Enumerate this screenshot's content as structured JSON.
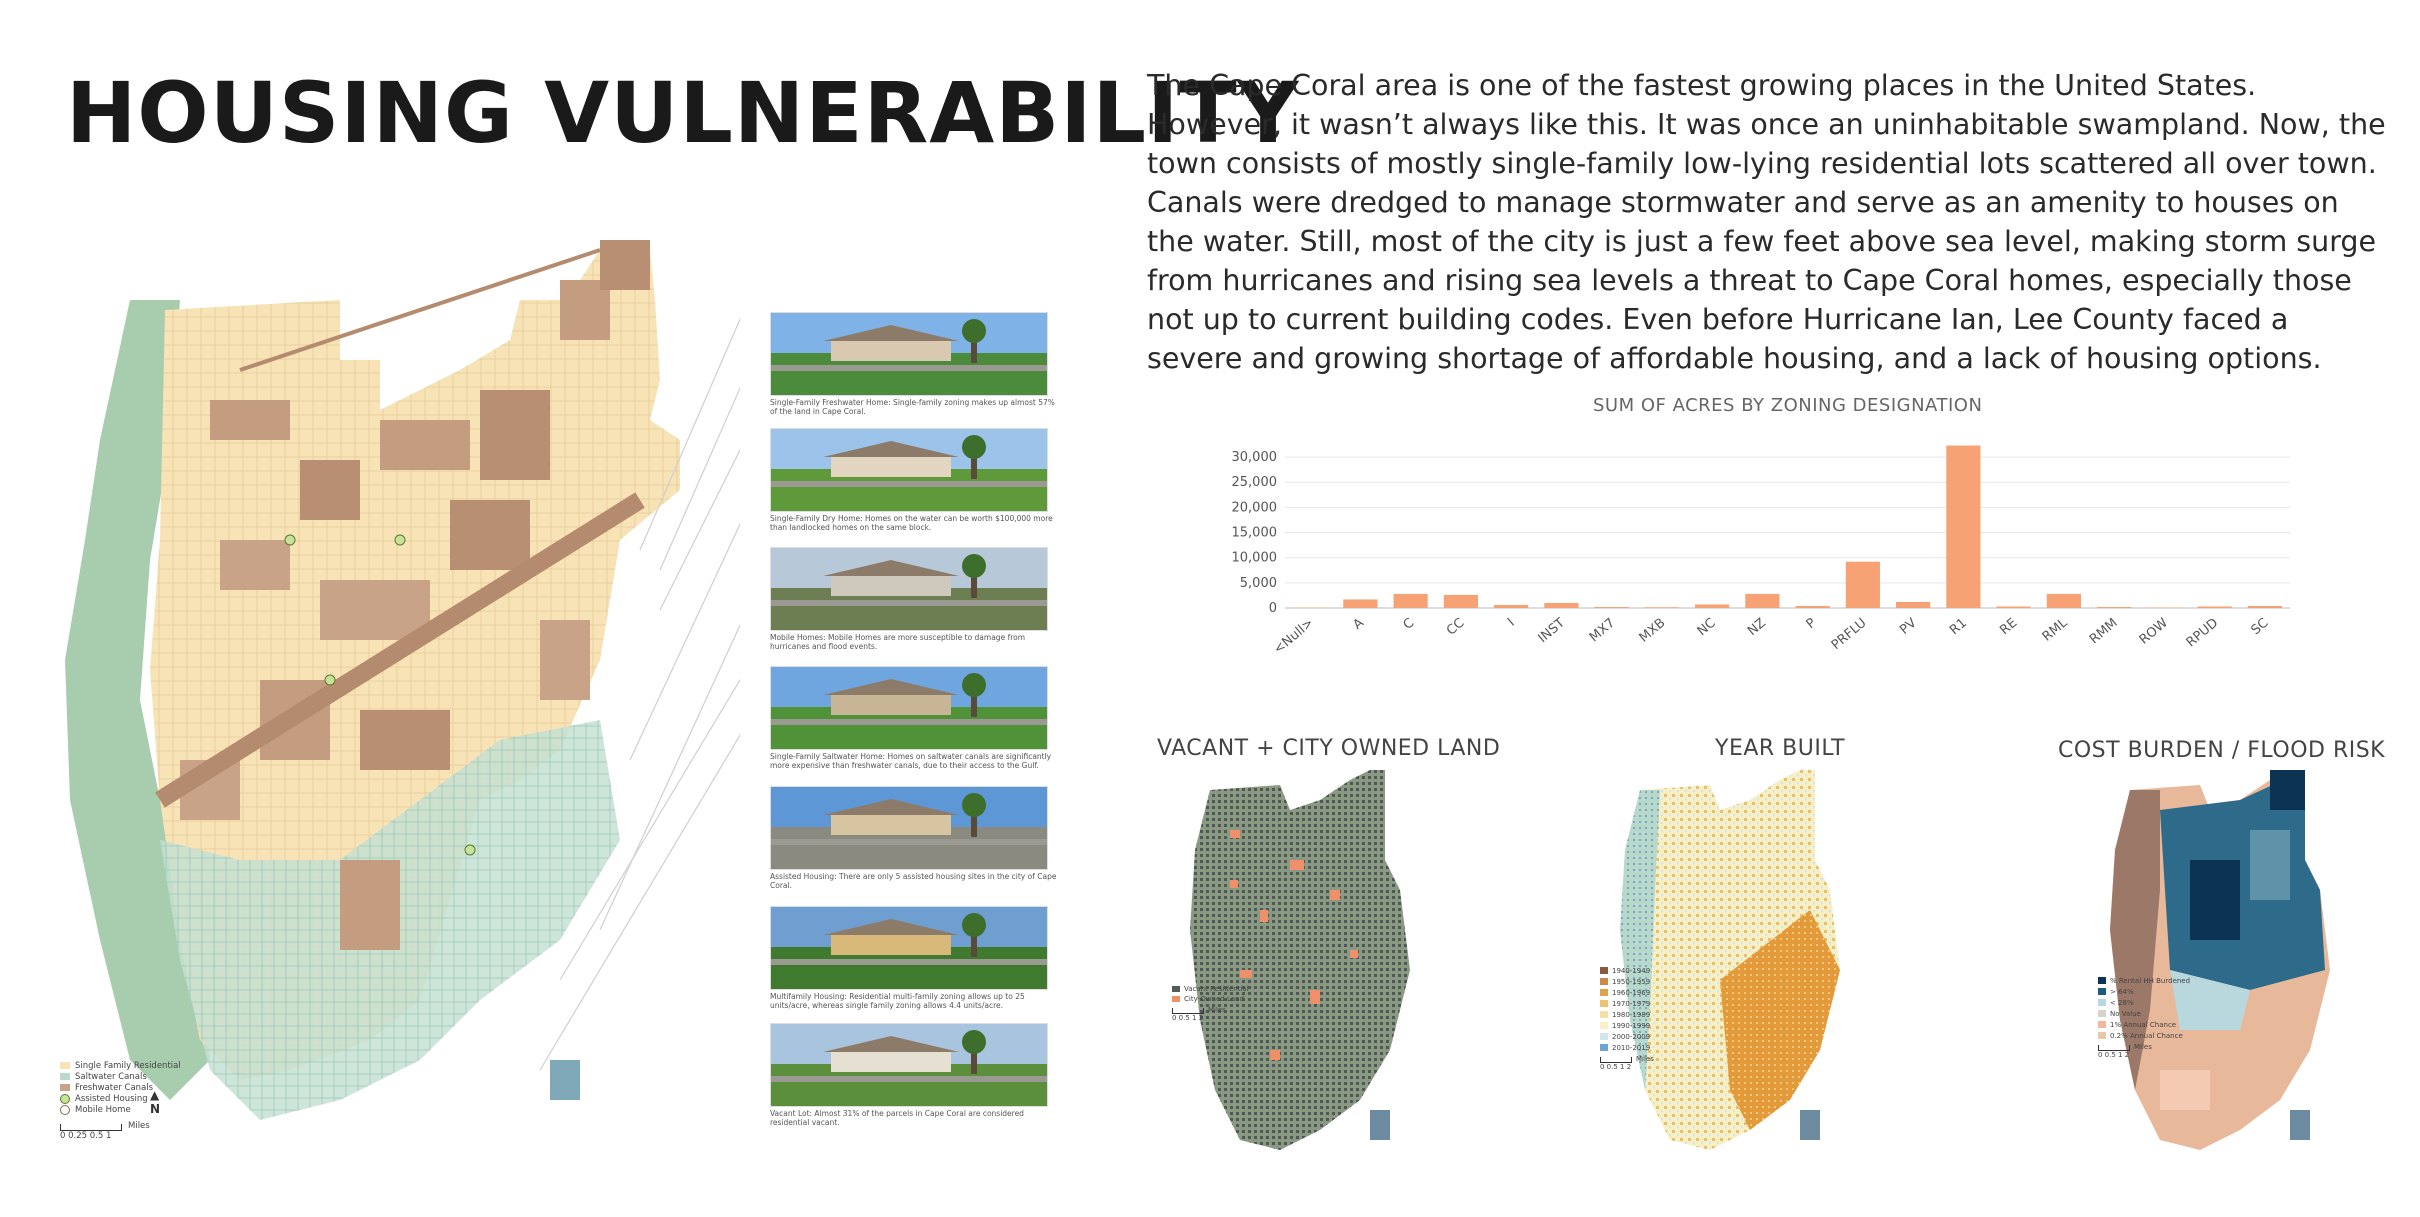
{
  "title": "HOUSING VULNERABILITY",
  "intro": "The Cape Coral area is one of the fastest growing places in the United States. However, it wasn’t always like this. It was once an uninhabitable swampland. Now, the town consists of mostly single-family low-lying residential lots scattered all over town. Canals were dredged to manage stormwater and serve as an amenity to houses on the water. Still, most of the city is just a few feet above sea level, making storm surge from hurricanes and rising sea levels a threat to Cape Coral homes, especially those not up to current building codes. Even before Hurricane Ian, Lee County faced a severe and growing shortage of affordable housing, and a lack of housing options.",
  "main_map": {
    "legend": [
      "Single Family Residential",
      "Saltwater Canals",
      "Freshwater Canals",
      "Assisted Housing",
      "Mobile Home"
    ],
    "scale_unit": "Miles",
    "scale_ticks": "0  0.25 0.5      1",
    "north": "N",
    "colors": {
      "residential": "#f7e3b5",
      "saltwater": "#b9d9cc",
      "freshwater": "#c9a388",
      "wetland": "#9fc7a5",
      "commercial": "#b48b6e"
    }
  },
  "photos": [
    {
      "name": "Single-Family Freshwater Home",
      "caption": "Single-Family Freshwater Home: Single-family zoning makes up almost 57% of the land in Cape Coral.",
      "sky": "#7fb2e6",
      "ground": "#4c8a3c",
      "house": "#d9c9b0"
    },
    {
      "name": "Single-Family Dry Home",
      "caption": "Single-Family Dry Home: Homes on the water can be worth $100,000 more than landlocked homes on the same block.",
      "sky": "#9cc4ea",
      "ground": "#5e9a3a",
      "house": "#e3d6c0"
    },
    {
      "name": "Mobile Homes",
      "caption": "Mobile Homes: Mobile Homes are more susceptible to damage from hurricanes and flood events.",
      "sky": "#b7c9d8",
      "ground": "#6d7f52",
      "house": "#cfc9bd"
    },
    {
      "name": "Single-Family Saltwater Home",
      "caption": "Single-Family Saltwater Home: Homes on saltwater canals are significantly more expensive than freshwater canals, due to their access to the Gulf.",
      "sky": "#6fa6df",
      "ground": "#4f9238",
      "house": "#c8b596"
    },
    {
      "name": "Assisted Housing",
      "caption": "Assisted Housing: There are only 5 assisted housing sites in the city of Cape Coral.",
      "sky": "#5d97d6",
      "ground": "#8a8a80",
      "house": "#d7c4a0"
    },
    {
      "name": "Multifamily Housing",
      "caption": "Multifamily Housing: Residential multi-family zoning allows up to 25 units/acre, whereas single family zoning allows 4.4 units/acre.",
      "sky": "#6f9fd0",
      "ground": "#3f7a2f",
      "house": "#d9b97a"
    },
    {
      "name": "Vacant Lot",
      "caption": "Vacant Lot: Almost 31% of the parcels in Cape Coral are considered residential vacant.",
      "sky": "#a8c4de",
      "ground": "#5c8f3c",
      "house": "#e6e0d2"
    }
  ],
  "chart_data": {
    "type": "bar",
    "title": "SUM OF ACRES BY ZONING DESIGNATION",
    "xlabel": "",
    "ylabel": "",
    "categories": [
      "<Null>",
      "A",
      "C",
      "CC",
      "I",
      "INST",
      "MX7",
      "MXB",
      "NC",
      "NZ",
      "P",
      "PRFLU",
      "PV",
      "R1",
      "RE",
      "RML",
      "RMM",
      "ROW",
      "RPUD",
      "SC"
    ],
    "values": [
      100,
      1700,
      2800,
      2600,
      600,
      1000,
      200,
      150,
      700,
      2800,
      400,
      9200,
      1200,
      32300,
      300,
      2800,
      200,
      100,
      300,
      400
    ],
    "yticks": [
      0,
      5000,
      10000,
      15000,
      20000,
      25000,
      30000
    ],
    "ytick_labels": [
      "0",
      "5,000",
      "10,000",
      "15,000",
      "20,000",
      "25,000",
      "30,000"
    ],
    "ylim": [
      0,
      33000
    ],
    "grid": true,
    "color": "#f6a274"
  },
  "small_maps": [
    {
      "title": "VACANT + CITY OWNED LAND",
      "legend": [
        "Vacant Residential",
        "City-Owned Land"
      ],
      "legend_colors": [
        "#555b5a",
        "#f0906a"
      ],
      "scale": "Miles",
      "scale_ticks": "0  0.5  1       2"
    },
    {
      "title": "YEAR BUILT",
      "legend": [
        "1940-1949",
        "1950-1959",
        "1960-1969",
        "1970-1979",
        "1980-1989",
        "1990-1999",
        "2000-2009",
        "2010-2019"
      ],
      "legend_colors": [
        "#8a5a40",
        "#c88b4a",
        "#e0a24c",
        "#efc175",
        "#f4e0a6",
        "#f7f0c8",
        "#cfe6ea",
        "#6fa5d4"
      ],
      "scale": "Miles",
      "scale_ticks": "0  0.5  1       2"
    },
    {
      "title": "COST BURDEN / FLOOD RISK",
      "legend": [
        "% Rental HH Burdened",
        "> 64%",
        "< 28%",
        "No Value",
        "1% Annual Chance",
        "0.2% Annual Chance"
      ],
      "legend_colors": [
        "#0d3352",
        "#1f5a7c",
        "#b9d8de",
        "#d9d2c8",
        "#f4b89b",
        "#e8c8ad"
      ],
      "scale": "Miles",
      "scale_ticks": "0  0.5  1       2"
    }
  ]
}
